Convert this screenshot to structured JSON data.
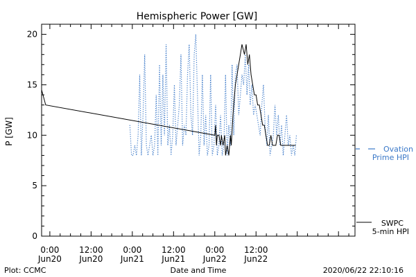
{
  "chart_data": {
    "type": "line",
    "title": "Hemispheric Power [GW]",
    "xlabel": "Date and Time",
    "ylabel": "P [GW]",
    "ylim": [
      0,
      21
    ],
    "xlim": [
      -0.1,
      3.7
    ],
    "yticks": [
      0,
      5,
      10,
      15,
      20
    ],
    "xtick_positions": [
      0,
      0.5,
      1,
      1.5,
      2,
      2.5
    ],
    "xtick_labels": [
      {
        "time": "0:00",
        "date": "Jun20"
      },
      {
        "time": "12:00",
        "date": "Jun20"
      },
      {
        "time": "0:00",
        "date": "Jun21"
      },
      {
        "time": "12:00",
        "date": "Jun21"
      },
      {
        "time": "0:00",
        "date": "Jun22"
      },
      {
        "time": "12:00",
        "date": "Jun22"
      }
    ],
    "grid": false,
    "legend_placement": "right",
    "series": [
      {
        "name": "SWPC 5-min HPI",
        "legend_lines": [
          "SWPC",
          "5-min HPI"
        ],
        "color": "#000000",
        "style": "solid",
        "x": [
          -0.1,
          -0.05,
          2.0,
          2.01,
          2.02,
          2.03,
          2.05,
          2.07,
          2.08,
          2.1,
          2.12,
          2.13,
          2.15,
          2.17,
          2.19,
          2.2,
          2.22,
          2.24,
          2.25,
          2.27,
          2.29,
          2.31,
          2.33,
          2.36,
          2.38,
          2.4,
          2.42,
          2.44,
          2.46,
          2.48,
          2.5,
          2.52,
          2.54,
          2.56,
          2.58,
          2.6,
          2.62,
          2.64,
          2.66,
          2.68,
          2.7,
          2.72,
          2.74,
          2.76,
          2.78,
          2.8,
          2.82,
          2.84,
          2.86,
          2.88,
          2.9,
          2.92,
          2.94,
          2.96,
          2.98
        ],
        "y": [
          14.5,
          13,
          10,
          11,
          9,
          10,
          10,
          9,
          10,
          9,
          10,
          8,
          9,
          8,
          10,
          9,
          12,
          14,
          15,
          16,
          17,
          18,
          19,
          18,
          19,
          17,
          18,
          16,
          15,
          14,
          14,
          13,
          13,
          12,
          11,
          11,
          10,
          9,
          9,
          10,
          9,
          9,
          9,
          10,
          10,
          9,
          9,
          9,
          9,
          9,
          9,
          9,
          9,
          9,
          9
        ]
      },
      {
        "name": "Ovation Prime HPI",
        "legend_lines": [
          "Ovation",
          "Prime HPI"
        ],
        "color": "#3a78c8",
        "style": "dotted",
        "x": [
          0.97,
          0.99,
          1.01,
          1.03,
          1.05,
          1.07,
          1.09,
          1.11,
          1.13,
          1.15,
          1.17,
          1.19,
          1.21,
          1.23,
          1.25,
          1.27,
          1.29,
          1.31,
          1.33,
          1.35,
          1.37,
          1.39,
          1.41,
          1.43,
          1.45,
          1.47,
          1.49,
          1.51,
          1.53,
          1.55,
          1.57,
          1.59,
          1.61,
          1.63,
          1.65,
          1.67,
          1.69,
          1.71,
          1.73,
          1.75,
          1.77,
          1.79,
          1.81,
          1.83,
          1.85,
          1.87,
          1.89,
          1.91,
          1.93,
          1.95,
          1.97,
          1.99,
          2.01,
          2.03,
          2.05,
          2.07,
          2.09,
          2.11,
          2.13,
          2.15,
          2.17,
          2.19,
          2.21,
          2.23,
          2.25,
          2.27,
          2.29,
          2.31,
          2.33,
          2.35,
          2.37,
          2.39,
          2.41,
          2.43,
          2.45,
          2.47,
          2.49,
          2.51,
          2.53,
          2.55,
          2.57,
          2.59,
          2.61,
          2.63,
          2.65,
          2.67,
          2.69,
          2.71,
          2.73,
          2.75,
          2.77,
          2.79,
          2.81,
          2.83,
          2.85,
          2.87,
          2.89,
          2.91,
          2.93,
          2.95,
          2.97,
          2.99
        ],
        "y": [
          11,
          8,
          8,
          9,
          8,
          10,
          16,
          8,
          12,
          18,
          9,
          8,
          9,
          10,
          8,
          9,
          14,
          8,
          17,
          9,
          16,
          10,
          19,
          9,
          11,
          8,
          10,
          15,
          9,
          11,
          13,
          18,
          9,
          11,
          10,
          16,
          19,
          12,
          10,
          18,
          20,
          14,
          8,
          10,
          16,
          9,
          12,
          8,
          9,
          16,
          8,
          9,
          13,
          8,
          9,
          12,
          8,
          9,
          16,
          8,
          11,
          9,
          17,
          10,
          16,
          17,
          12,
          14,
          16,
          15,
          18,
          14,
          17,
          13,
          15,
          12,
          13,
          12,
          11,
          10,
          13,
          15,
          11,
          9,
          12,
          8,
          9,
          10,
          13,
          10,
          12,
          9,
          11,
          8,
          10,
          12,
          9,
          10,
          8,
          9,
          8,
          10
        ]
      }
    ],
    "footer": {
      "left": "Plot: CCMC",
      "right": "2020/06/22 22:10:16"
    }
  }
}
